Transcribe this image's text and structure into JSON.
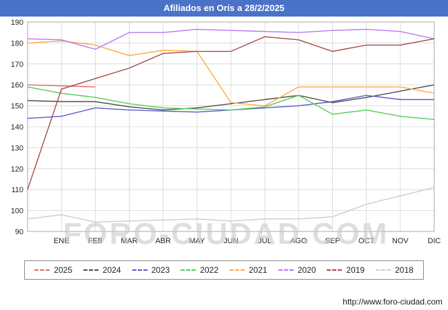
{
  "header": {
    "title": "Afiliados en Orís a 28/2/2025"
  },
  "colors": {
    "header_bg": "#4a72c8",
    "grid": "#dcdcdc",
    "plot_border": "#aaaaaa",
    "tick_text": "#222222",
    "watermark": "#c9c9c9"
  },
  "watermark": "FORO-CIUDAD.COM",
  "footer": {
    "url": "http://www.foro-ciudad.com"
  },
  "chart_data": {
    "type": "line",
    "title": "Afiliados en Orís a 28/2/2025",
    "xlabel": "",
    "ylabel": "",
    "ylim": [
      90,
      190
    ],
    "y_ticks": [
      90,
      100,
      110,
      120,
      130,
      140,
      150,
      160,
      170,
      180,
      190
    ],
    "grid": true,
    "legend_position": "bottom",
    "x_labels": [
      "ENE",
      "FEB",
      "MAR",
      "ABR",
      "MAY",
      "JUN",
      "JUL",
      "AGO",
      "SEP",
      "OCT",
      "NOV",
      "DIC"
    ],
    "note_x_layout": "13 points per series: index 0 is the left plot edge, indexes 1-12 fall under the month labels ENE-DIC",
    "series": [
      {
        "name": "2025",
        "color": "#e06a6a",
        "values": [
          160,
          159.5,
          159,
          null,
          null,
          null,
          null,
          null,
          null,
          null,
          null,
          null,
          null
        ]
      },
      {
        "name": "2024",
        "color": "#4d4d4d",
        "values": [
          152.5,
          152,
          152,
          149.5,
          148,
          149,
          151,
          153,
          155,
          151.5,
          154,
          157,
          160
        ]
      },
      {
        "name": "2023",
        "color": "#5959cc",
        "values": [
          144,
          145,
          149,
          148,
          147.5,
          147,
          148,
          149,
          150,
          152,
          155,
          153,
          153
        ]
      },
      {
        "name": "2022",
        "color": "#55cc55",
        "values": [
          159,
          156,
          154,
          151,
          149,
          148.5,
          148,
          149.5,
          155,
          146,
          148,
          145,
          143.5
        ]
      },
      {
        "name": "2021",
        "color": "#ffaa44",
        "values": [
          180,
          181,
          179,
          174,
          176.5,
          176,
          151.5,
          150,
          159,
          159,
          159,
          159,
          156
        ]
      },
      {
        "name": "2020",
        "color": "#bb77ee",
        "values": [
          182,
          181.5,
          177,
          185,
          185,
          186.5,
          186,
          185.5,
          185,
          186,
          186.5,
          185.5,
          182
        ]
      },
      {
        "name": "2019",
        "color": "#a84848",
        "values": [
          110,
          158,
          163,
          168,
          175,
          176,
          176,
          183,
          181.5,
          176,
          179,
          179,
          182
        ]
      },
      {
        "name": "2018",
        "color": "#cccccc",
        "values": [
          96,
          98,
          94.5,
          95,
          95.5,
          96,
          95,
          96,
          96,
          97,
          103,
          107,
          111
        ]
      }
    ]
  }
}
